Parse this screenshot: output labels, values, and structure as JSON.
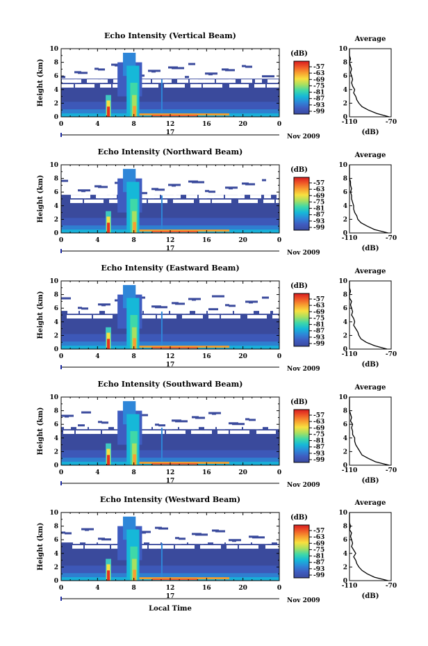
{
  "figure": {
    "xlabel": "Local Time",
    "date_label": "Nov 2009",
    "day_label": "17",
    "cbar_unit": "(dB)",
    "avg_title": "Average",
    "avg_xlabel": "(dB)"
  },
  "colorscale": {
    "ticks": [
      "-57",
      "-63",
      "-69",
      "-75",
      "-81",
      "-87",
      "-93",
      "-99"
    ],
    "stops": [
      "#3b4aa0",
      "#3f5cc0",
      "#2e86d8",
      "#16b8d8",
      "#3fd8a8",
      "#a8e060",
      "#f8e040",
      "#f8a030",
      "#f05a28",
      "#d81c20"
    ]
  },
  "chart_data": [
    {
      "type": "heatmap",
      "title": "Echo Intensity (Vertical Beam)",
      "ylabel": "Height (km)",
      "xlim": [
        0,
        24
      ],
      "ylim": [
        0,
        10
      ],
      "xticks": [
        "0",
        "4",
        "8",
        "12",
        "16",
        "20",
        "0"
      ],
      "yticks": [
        "0",
        "2",
        "4",
        "6",
        "8",
        "10"
      ],
      "clim": [
        -99,
        -57
      ],
      "average_profile": {
        "xlim": [
          -110,
          -70
        ],
        "xticks": [
          "-110",
          "-70"
        ],
        "height_km": [
          0,
          0.5,
          1,
          1.5,
          2,
          2.5,
          3,
          3.5,
          4,
          4.5,
          5,
          5.5,
          6,
          6.5,
          7,
          7.5,
          8,
          8.5,
          9,
          9.5,
          10
        ],
        "db": [
          -72,
          -84,
          -92,
          -98,
          -101,
          -103,
          -104,
          -106,
          -105,
          -107,
          -108,
          -107,
          -108,
          -109,
          -108,
          -109,
          -110,
          -109,
          -111,
          -112,
          -112
        ]
      }
    },
    {
      "type": "heatmap",
      "title": "Echo Intensity (Northward Beam)",
      "ylabel": "Height (km)",
      "xlim": [
        0,
        24
      ],
      "ylim": [
        0,
        10
      ],
      "xticks": [
        "0",
        "4",
        "8",
        "12",
        "16",
        "20",
        "0"
      ],
      "yticks": [
        "0",
        "2",
        "4",
        "6",
        "8",
        "10"
      ],
      "clim": [
        -99,
        -57
      ],
      "average_profile": {
        "xlim": [
          -110,
          -70
        ],
        "xticks": [
          "-110",
          "-70"
        ],
        "height_km": [
          0,
          0.5,
          1,
          1.5,
          2,
          2.5,
          3,
          3.5,
          4,
          4.5,
          5,
          5.5,
          6,
          6.5,
          7,
          7.5,
          8,
          8.5,
          9,
          9.5,
          10
        ],
        "db": [
          -73,
          -86,
          -93,
          -99,
          -102,
          -103,
          -105,
          -106,
          -106,
          -107,
          -108,
          -108,
          -109,
          -108,
          -109,
          -109,
          -110,
          -110,
          -111,
          -112,
          -112
        ]
      }
    },
    {
      "type": "heatmap",
      "title": "Echo Intensity (Eastward Beam)",
      "ylabel": "Height (km)",
      "xlim": [
        0,
        24
      ],
      "ylim": [
        0,
        10
      ],
      "xticks": [
        "0",
        "4",
        "8",
        "12",
        "16",
        "20",
        "0"
      ],
      "yticks": [
        "0",
        "2",
        "4",
        "6",
        "8",
        "10"
      ],
      "clim": [
        -99,
        -57
      ],
      "average_profile": {
        "xlim": [
          -110,
          -70
        ],
        "xticks": [
          "-110",
          "-70"
        ],
        "height_km": [
          0,
          0.5,
          1,
          1.5,
          2,
          2.5,
          3,
          3.5,
          4,
          4.5,
          5,
          5.5,
          6,
          6.5,
          7,
          7.5,
          8,
          8.5,
          9,
          9.5,
          10
        ],
        "db": [
          -74,
          -86,
          -94,
          -99,
          -101,
          -102,
          -104,
          -106,
          -105,
          -106,
          -108,
          -107,
          -108,
          -109,
          -108,
          -110,
          -110,
          -109,
          -111,
          -112,
          -112
        ]
      }
    },
    {
      "type": "heatmap",
      "title": "Echo Intensity (Southward Beam)",
      "ylabel": "Height (km)",
      "xlim": [
        0,
        24
      ],
      "ylim": [
        0,
        10
      ],
      "xticks": [
        "0",
        "4",
        "8",
        "12",
        "16",
        "20",
        "0"
      ],
      "yticks": [
        "0",
        "2",
        "4",
        "6",
        "8",
        "10"
      ],
      "clim": [
        -99,
        -57
      ],
      "average_profile": {
        "xlim": [
          -110,
          -70
        ],
        "xticks": [
          "-110",
          "-70"
        ],
        "height_km": [
          0,
          0.5,
          1,
          1.5,
          2,
          2.5,
          3,
          3.5,
          4,
          4.5,
          5,
          5.5,
          6,
          6.5,
          7,
          7.5,
          8,
          8.5,
          9,
          9.5,
          10
        ],
        "db": [
          -72,
          -85,
          -92,
          -98,
          -100,
          -102,
          -104,
          -105,
          -105,
          -107,
          -107,
          -108,
          -107,
          -109,
          -108,
          -109,
          -110,
          -110,
          -111,
          -112,
          -112
        ]
      }
    },
    {
      "type": "heatmap",
      "title": "Echo Intensity (Westward Beam)",
      "ylabel": "Height (km)",
      "xlim": [
        0,
        24
      ],
      "ylim": [
        0,
        10
      ],
      "xticks": [
        "0",
        "4",
        "8",
        "12",
        "16",
        "20",
        "0"
      ],
      "yticks": [
        "0",
        "2",
        "4",
        "6",
        "8",
        "10"
      ],
      "clim": [
        -99,
        -57
      ],
      "average_profile": {
        "xlim": [
          -110,
          -70
        ],
        "xticks": [
          "-110",
          "-70"
        ],
        "height_km": [
          0,
          0.5,
          1,
          1.5,
          2,
          2.5,
          3,
          3.5,
          4,
          4.5,
          5,
          5.5,
          6,
          6.5,
          7,
          7.5,
          8,
          8.5,
          9,
          9.5,
          10
        ],
        "db": [
          -73,
          -86,
          -93,
          -98,
          -101,
          -103,
          -104,
          -106,
          -104,
          -106,
          -108,
          -107,
          -108,
          -109,
          -108,
          -110,
          -109,
          -110,
          -111,
          -112,
          -112
        ]
      }
    }
  ]
}
